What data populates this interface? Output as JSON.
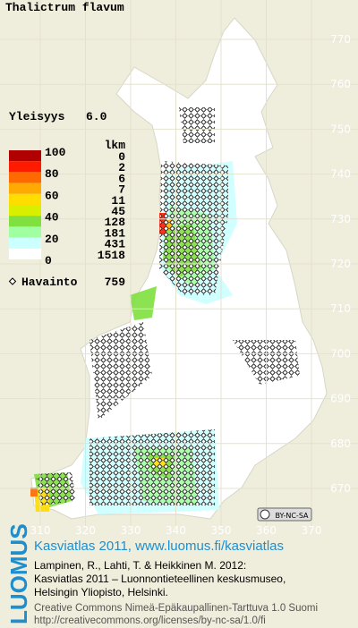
{
  "title": "Thalictrum flavum",
  "frequency": {
    "label": "Yleisyys",
    "value": "6.0"
  },
  "legend": {
    "count_header": "lkm",
    "scale_labels": [
      "100",
      "80",
      "60",
      "40",
      "20",
      "0"
    ],
    "classes": [
      {
        "color": "#b00000",
        "count": "0"
      },
      {
        "color": "#ff1a00",
        "count": "2"
      },
      {
        "color": "#ff6a00",
        "count": "6"
      },
      {
        "color": "#ffaa00",
        "count": "7"
      },
      {
        "color": "#ffdd00",
        "count": "11"
      },
      {
        "color": "#d8f000",
        "count": "45"
      },
      {
        "color": "#80e040",
        "count": "128"
      },
      {
        "color": "#a0ffa0",
        "count": "181"
      },
      {
        "color": "#ccffff",
        "count": "431"
      },
      {
        "color": "#ffffff",
        "count": "1518"
      }
    ]
  },
  "observations": {
    "label": "Havainto",
    "count": "759"
  },
  "grid": {
    "northing_labels": [
      "770",
      "760",
      "750",
      "740",
      "730",
      "720",
      "710",
      "700",
      "690",
      "680",
      "670"
    ],
    "easting_labels": [
      "310",
      "320",
      "330",
      "340",
      "350",
      "360",
      "370"
    ]
  },
  "license_badge": "BY-NC-SA",
  "footer": {
    "brand": "LUOMUS",
    "link": "Kasviatlas 2011, www.luomus.fi/kasviatlas",
    "citation": [
      "Lampinen, R., Lahti, T. & Heikkinen M. 2012:",
      "Kasviatlas 2011 – Luonnontieteellinen keskusmuseo,",
      "Helsingin Yliopisto, Helsinki."
    ],
    "license": [
      "Creative Commons Nimeä-Epäkaupallinen-Tarttuva 1.0 Suomi",
      "http://creativecommons.org/licenses/by-nc-sa/1.0/fi"
    ]
  }
}
